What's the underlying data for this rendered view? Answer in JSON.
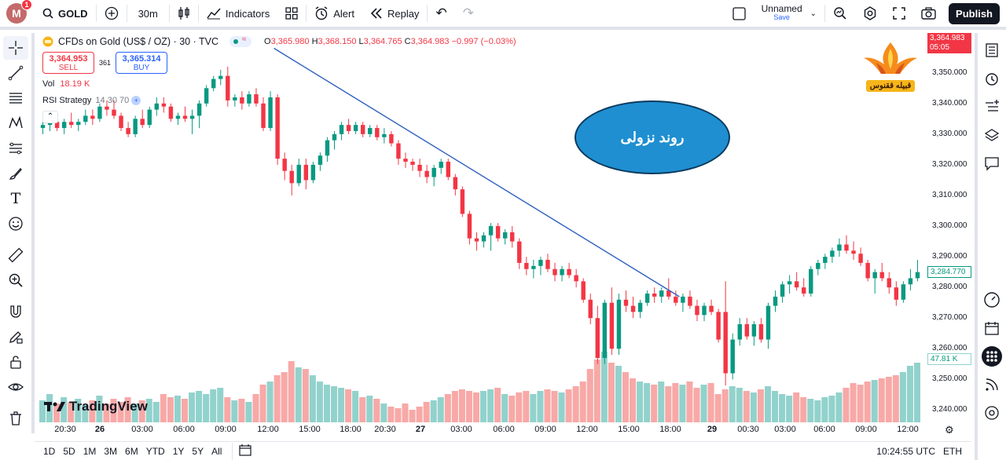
{
  "topbar": {
    "avatar_letter": "M",
    "notification_count": "1",
    "symbol": "GOLD",
    "interval": "30m",
    "indicators_label": "Indicators",
    "alert_label": "Alert",
    "replay_label": "Replay",
    "layout_name": "Unnamed",
    "layout_save": "Save",
    "publish_label": "Publish"
  },
  "legend": {
    "title": "CFDs on Gold (US$ / OZ) · 30 · TVC",
    "open_label": "O",
    "open": "3,365.980",
    "high_label": "H",
    "high": "3,368.150",
    "low_label": "L",
    "low": "3,364.765",
    "close_label": "C",
    "close": "3,364.983",
    "change": "−0.997 (−0.03%)"
  },
  "trade": {
    "sell_price": "3,364.953",
    "sell_label": "SELL",
    "spread": "361",
    "buy_price": "3,365.314",
    "buy_label": "BUY"
  },
  "volume": {
    "label": "Vol",
    "value": "18.19 K"
  },
  "rsi": {
    "label": "RSI Strategy",
    "params": "14 30 70"
  },
  "annotation": {
    "text": "روند نزولی"
  },
  "logo": {
    "text": "قبیله ققنوس"
  },
  "watermark": "TradingView",
  "price_axis": {
    "current_price": "3,364.983",
    "countdown": "05:05",
    "crosshair_price": "3,284.770",
    "volume_tag": "47.81 K",
    "ticks": [
      "3,350.000",
      "3,340.000",
      "3,330.000",
      "3,320.000",
      "3,310.000",
      "3,300.000",
      "3,290.000",
      "3,280.000",
      "3,270.000",
      "3,260.000",
      "3,250.000",
      "3,240.000"
    ]
  },
  "time_axis": [
    "20:30",
    "26",
    "03:00",
    "06:00",
    "09:00",
    "12:00",
    "15:00",
    "18:00",
    "20:30",
    "27",
    "03:00",
    "06:00",
    "09:00",
    "12:00",
    "15:00",
    "18:00",
    "29",
    "00:30",
    "03:00",
    "06:00",
    "09:00",
    "12:00"
  ],
  "bottombar": {
    "ranges": [
      "1D",
      "5D",
      "1M",
      "3M",
      "6M",
      "YTD",
      "1Y",
      "5Y",
      "All"
    ],
    "clock": "10:24:55 UTC",
    "currency": "ETH"
  },
  "colors": {
    "up": "#089981",
    "down": "#f23645",
    "up_vol": "#92d2cc",
    "down_vol": "#f7a9a7",
    "trendline": "#2f5fbf"
  },
  "chart_data": {
    "type": "candlestick",
    "series_name": "GOLD 30m",
    "ylim": [
      3236,
      3363
    ],
    "ohlc": [
      [
        3332,
        3334,
        3330,
        3333
      ],
      [
        3333,
        3336,
        3331,
        3334
      ],
      [
        3334,
        3336,
        3331,
        3332
      ],
      [
        3332,
        3335,
        3330,
        3334
      ],
      [
        3334,
        3337,
        3332,
        3333
      ],
      [
        3333,
        3335,
        3331,
        3334
      ],
      [
        3334,
        3338,
        3333,
        3336
      ],
      [
        3336,
        3338,
        3333,
        3335
      ],
      [
        3335,
        3340,
        3334,
        3339
      ],
      [
        3339,
        3341,
        3336,
        3338
      ],
      [
        3338,
        3341,
        3335,
        3336
      ],
      [
        3336,
        3337,
        3331,
        3332
      ],
      [
        3332,
        3334,
        3329,
        3330
      ],
      [
        3330,
        3336,
        3329,
        3335
      ],
      [
        3335,
        3338,
        3332,
        3333
      ],
      [
        3333,
        3339,
        3332,
        3338
      ],
      [
        3338,
        3342,
        3336,
        3340
      ],
      [
        3340,
        3342,
        3337,
        3339
      ],
      [
        3339,
        3340,
        3334,
        3335
      ],
      [
        3335,
        3337,
        3333,
        3336
      ],
      [
        3336,
        3339,
        3334,
        3335
      ],
      [
        3335,
        3338,
        3330,
        3336
      ],
      [
        3336,
        3341,
        3332,
        3340
      ],
      [
        3340,
        3346,
        3339,
        3345
      ],
      [
        3345,
        3349,
        3344,
        3348
      ],
      [
        3348,
        3351,
        3346,
        3349
      ],
      [
        3349,
        3352,
        3339,
        3341
      ],
      [
        3341,
        3343,
        3339,
        3342
      ],
      [
        3342,
        3344,
        3338,
        3340
      ],
      [
        3340,
        3344,
        3339,
        3343
      ],
      [
        3343,
        3345,
        3339,
        3340
      ],
      [
        3340,
        3342,
        3331,
        3332
      ],
      [
        3332,
        3344,
        3331,
        3342
      ],
      [
        3342,
        3343,
        3320,
        3322
      ],
      [
        3322,
        3324,
        3315,
        3318
      ],
      [
        3318,
        3320,
        3310,
        3314
      ],
      [
        3314,
        3322,
        3313,
        3320
      ],
      [
        3320,
        3322,
        3312,
        3315
      ],
      [
        3315,
        3321,
        3314,
        3320
      ],
      [
        3320,
        3324,
        3318,
        3323
      ],
      [
        3323,
        3329,
        3321,
        3328
      ],
      [
        3328,
        3331,
        3325,
        3330
      ],
      [
        3330,
        3334,
        3328,
        3333
      ],
      [
        3333,
        3335,
        3330,
        3331
      ],
      [
        3331,
        3334,
        3330,
        3333
      ],
      [
        3333,
        3334,
        3329,
        3330
      ],
      [
        3330,
        3333,
        3329,
        3332
      ],
      [
        3332,
        3333,
        3328,
        3329
      ],
      [
        3329,
        3332,
        3327,
        3330
      ],
      [
        3330,
        3331,
        3326,
        3327
      ],
      [
        3327,
        3328,
        3320,
        3322
      ],
      [
        3322,
        3324,
        3319,
        3321
      ],
      [
        3321,
        3322,
        3318,
        3320
      ],
      [
        3320,
        3322,
        3316,
        3318
      ],
      [
        3318,
        3320,
        3314,
        3316
      ],
      [
        3316,
        3320,
        3313,
        3319
      ],
      [
        3319,
        3322,
        3317,
        3321
      ],
      [
        3321,
        3322,
        3315,
        3316
      ],
      [
        3316,
        3317,
        3310,
        3312
      ],
      [
        3312,
        3313,
        3303,
        3304
      ],
      [
        3304,
        3305,
        3294,
        3296
      ],
      [
        3296,
        3298,
        3292,
        3295
      ],
      [
        3295,
        3298,
        3293,
        3297
      ],
      [
        3297,
        3301,
        3292,
        3300
      ],
      [
        3300,
        3301,
        3295,
        3296
      ],
      [
        3296,
        3299,
        3294,
        3298
      ],
      [
        3298,
        3300,
        3293,
        3295
      ],
      [
        3295,
        3296,
        3286,
        3288
      ],
      [
        3288,
        3290,
        3284,
        3286
      ],
      [
        3286,
        3289,
        3283,
        3287
      ],
      [
        3287,
        3290,
        3284,
        3289
      ],
      [
        3289,
        3291,
        3285,
        3286
      ],
      [
        3286,
        3288,
        3282,
        3284
      ],
      [
        3284,
        3287,
        3282,
        3286
      ],
      [
        3286,
        3288,
        3283,
        3284
      ],
      [
        3284,
        3286,
        3280,
        3282
      ],
      [
        3282,
        3283,
        3275,
        3276
      ],
      [
        3276,
        3278,
        3268,
        3270
      ],
      [
        3270,
        3274,
        3255,
        3257
      ],
      [
        3257,
        3276,
        3255,
        3275
      ],
      [
        3275,
        3280,
        3258,
        3260
      ],
      [
        3260,
        3278,
        3258,
        3276
      ],
      [
        3276,
        3279,
        3272,
        3274
      ],
      [
        3274,
        3277,
        3270,
        3272
      ],
      [
        3272,
        3276,
        3270,
        3275
      ],
      [
        3275,
        3279,
        3274,
        3278
      ],
      [
        3278,
        3280,
        3275,
        3277
      ],
      [
        3277,
        3280,
        3275,
        3279
      ],
      [
        3279,
        3283,
        3276,
        3277
      ],
      [
        3277,
        3279,
        3274,
        3275
      ],
      [
        3275,
        3278,
        3272,
        3277
      ],
      [
        3277,
        3279,
        3273,
        3274
      ],
      [
        3274,
        3276,
        3269,
        3271
      ],
      [
        3271,
        3275,
        3269,
        3274
      ],
      [
        3274,
        3276,
        3271,
        3272
      ],
      [
        3272,
        3273,
        3262,
        3263
      ],
      [
        3272,
        3282,
        3248,
        3252
      ],
      [
        3252,
        3265,
        3250,
        3263
      ],
      [
        3263,
        3270,
        3261,
        3268
      ],
      [
        3268,
        3270,
        3263,
        3264
      ],
      [
        3264,
        3269,
        3261,
        3268
      ],
      [
        3268,
        3270,
        3262,
        3263
      ],
      [
        3263,
        3275,
        3260,
        3274
      ],
      [
        3274,
        3279,
        3272,
        3277
      ],
      [
        3277,
        3282,
        3275,
        3281
      ],
      [
        3281,
        3284,
        3278,
        3282
      ],
      [
        3282,
        3285,
        3279,
        3280
      ],
      [
        3280,
        3283,
        3277,
        3278
      ],
      [
        3278,
        3287,
        3277,
        3286
      ],
      [
        3286,
        3289,
        3284,
        3288
      ],
      [
        3288,
        3291,
        3286,
        3290
      ],
      [
        3290,
        3293,
        3288,
        3292
      ],
      [
        3292,
        3296,
        3290,
        3294
      ],
      [
        3294,
        3297,
        3291,
        3292
      ],
      [
        3292,
        3295,
        3289,
        3291
      ],
      [
        3291,
        3293,
        3287,
        3288
      ],
      [
        3288,
        3289,
        3282,
        3283
      ],
      [
        3283,
        3286,
        3278,
        3285
      ],
      [
        3285,
        3288,
        3282,
        3283
      ],
      [
        3283,
        3285,
        3278,
        3280
      ],
      [
        3280,
        3282,
        3274,
        3276
      ],
      [
        3276,
        3282,
        3275,
        3281
      ],
      [
        3281,
        3286,
        3279,
        3283
      ],
      [
        3283,
        3289,
        3282,
        3285
      ]
    ],
    "volume": [
      1.4,
      1.8,
      1.2,
      1.6,
      1.3,
      1.5,
      1.1,
      1.4,
      1.7,
      1.2,
      1.5,
      1.3,
      1.6,
      1.2,
      1.4,
      1.5,
      1.3,
      1.8,
      1.6,
      1.7,
      1.5,
      1.9,
      2.0,
      1.8,
      2.1,
      2.2,
      1.6,
      1.4,
      1.5,
      1.3,
      1.8,
      2.4,
      2.6,
      3.0,
      3.2,
      3.9,
      3.5,
      3.4,
      3.0,
      2.6,
      2.4,
      2.3,
      2.2,
      2.1,
      2.0,
      1.6,
      1.7,
      1.5,
      1.2,
      1.0,
      0.9,
      1.2,
      0.8,
      1.0,
      1.3,
      1.4,
      1.6,
      1.8,
      2.0,
      2.1,
      2.0,
      1.9,
      2.0,
      2.1,
      2.2,
      1.8,
      1.7,
      1.9,
      2.0,
      1.8,
      2.0,
      2.1,
      2.0,
      1.9,
      2.1,
      2.3,
      2.6,
      3.4,
      4.0,
      4.5,
      3.8,
      3.6,
      3.2,
      2.8,
      2.6,
      2.5,
      2.4,
      2.6,
      2.3,
      2.5,
      2.4,
      2.6,
      2.2,
      2.4,
      2.5,
      1.8,
      2.1,
      2.3,
      2.2,
      2.0,
      1.9,
      2.1,
      2.3,
      2.0,
      1.8,
      1.7,
      1.9,
      1.6,
      1.5,
      1.4,
      1.6,
      1.7,
      1.9,
      2.2,
      2.5,
      2.4,
      2.6,
      2.7,
      2.8,
      2.9,
      3.0,
      3.2,
      3.6,
      3.8
    ],
    "trendline": {
      "start": {
        "bar": 33,
        "price": 3358
      },
      "end": {
        "bar": 90,
        "price": 3277
      }
    }
  }
}
